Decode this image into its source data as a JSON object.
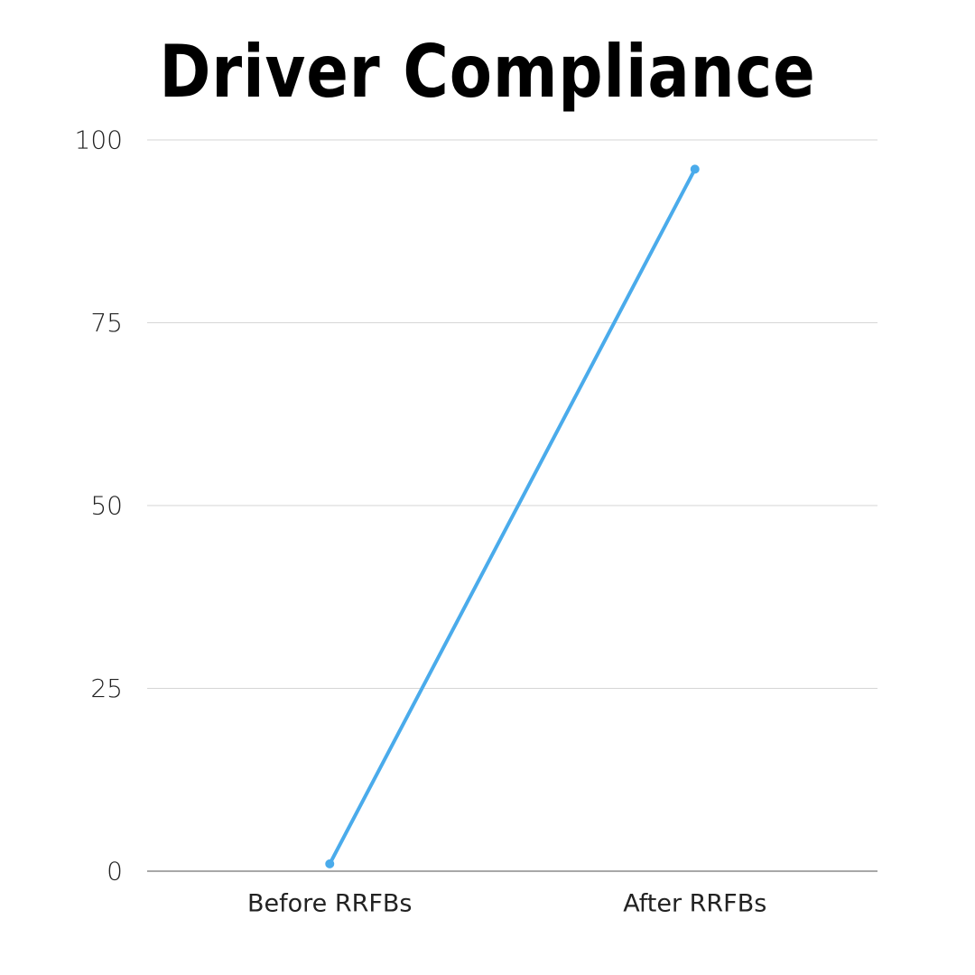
{
  "chart_data": {
    "type": "line",
    "title": "Driver Compliance",
    "xlabel": "",
    "ylabel": "",
    "categories": [
      "Before RRFBs",
      "After RRFBs"
    ],
    "series": [
      {
        "values": [
          1,
          96
        ]
      }
    ],
    "ylim": [
      0,
      100
    ],
    "yticks": [
      0,
      25,
      50,
      75,
      100
    ],
    "grid": true,
    "legend": "none",
    "colors": {
      "line": "#4AABEB",
      "grid": "#D6D6D6",
      "axis": "#8C8C8C"
    }
  }
}
